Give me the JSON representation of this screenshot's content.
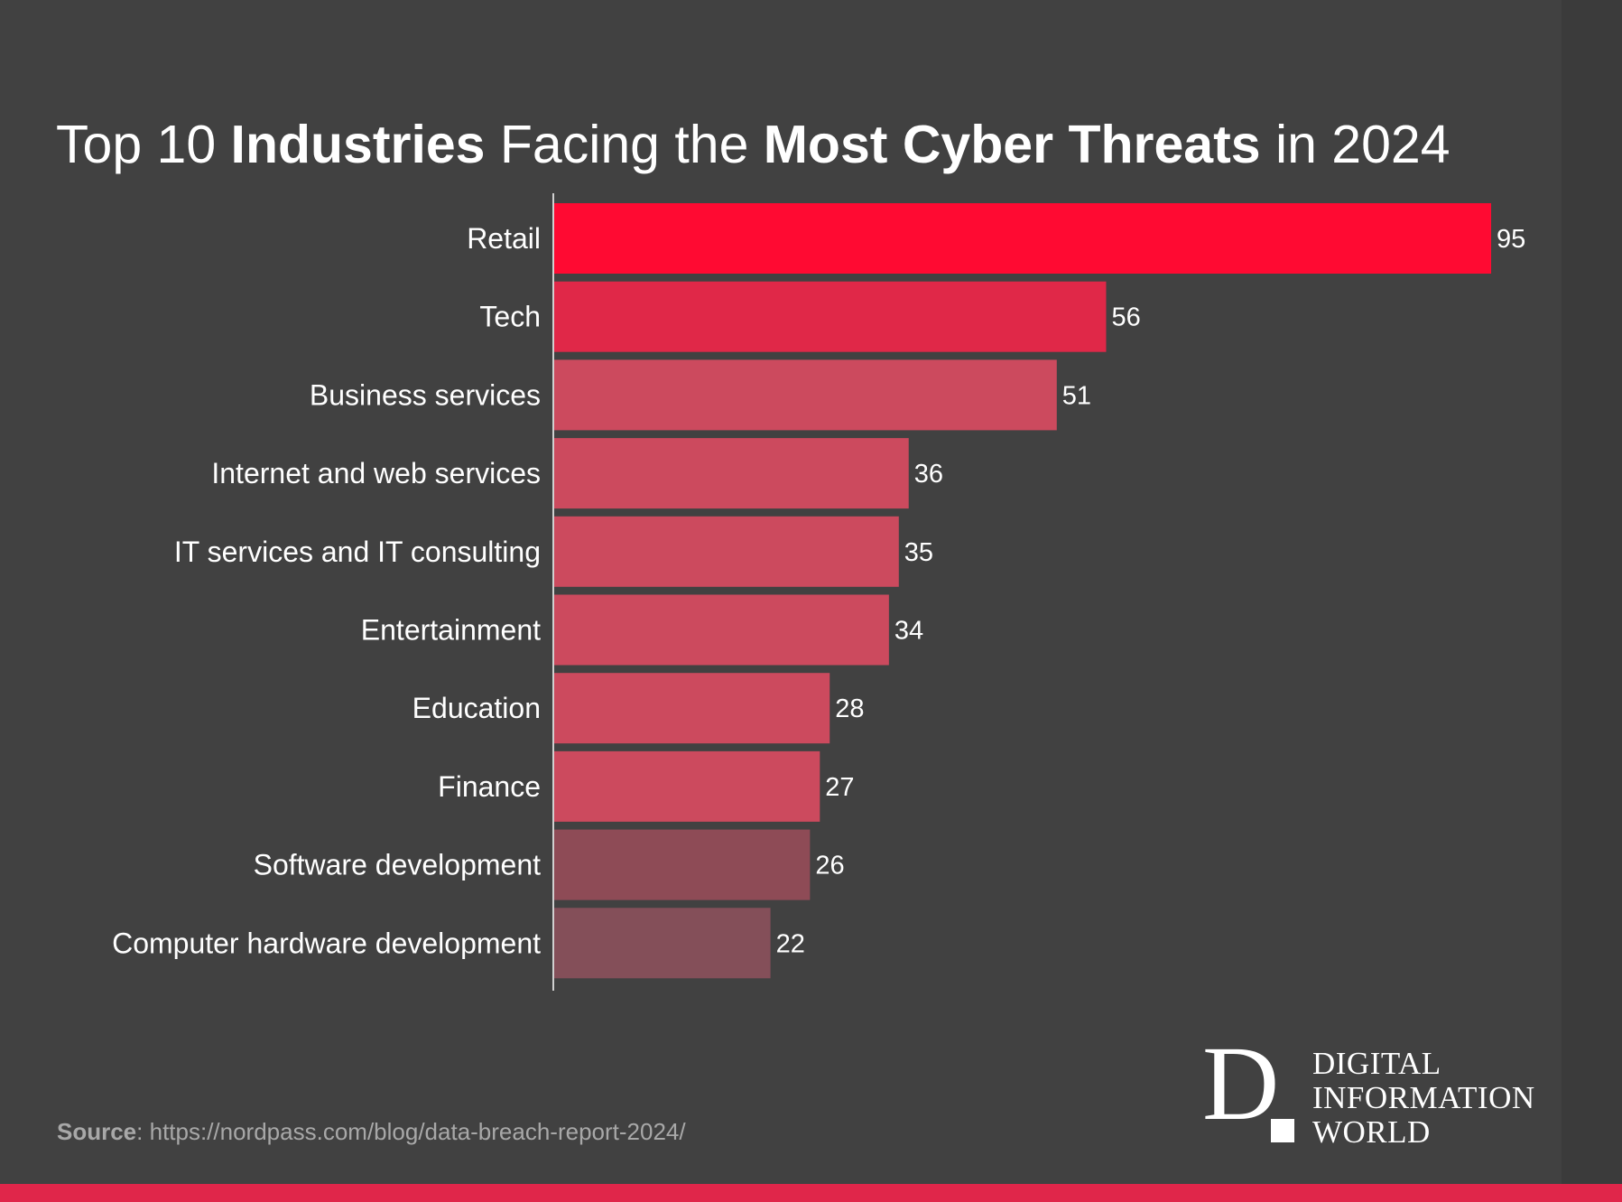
{
  "title": {
    "part1": "Top 10 ",
    "part2_bold": "Industries",
    "part3": " Facing the ",
    "part4_bold": "Most Cyber Threats",
    "part5": " in 2024"
  },
  "chart_data": {
    "type": "bar",
    "orientation": "horizontal",
    "categories": [
      "Retail",
      "Tech",
      "Business services",
      "Internet and web services",
      "IT services and IT consulting",
      "Entertainment",
      "Education",
      "Finance",
      "Software development",
      "Computer hardware development"
    ],
    "values": [
      95,
      56,
      51,
      36,
      35,
      34,
      28,
      27,
      26,
      22
    ],
    "value_labels": [
      "95",
      "56",
      "51",
      "36",
      "35",
      "34",
      "28",
      "27",
      "26",
      "22"
    ],
    "colors": [
      "#ff0a32",
      "#e02848",
      "#cc4a5e",
      "#cc4a5e",
      "#cc4a5e",
      "#cc4a5e",
      "#cc4a5e",
      "#cc4a5e",
      "#8e4b56",
      "#844f59"
    ],
    "xlim": [
      0,
      95
    ],
    "grid": false,
    "legend": "none"
  },
  "source": {
    "label": "Source",
    "text": ": https://nordpass.com/blog/data-breach-report-2024/"
  },
  "logo": {
    "letter": "D",
    "line1": "DIGITAL",
    "line2": "INFORMATION",
    "line3": "WORLD"
  },
  "colors": {
    "background": "#414141",
    "accent": "#e0264a"
  }
}
